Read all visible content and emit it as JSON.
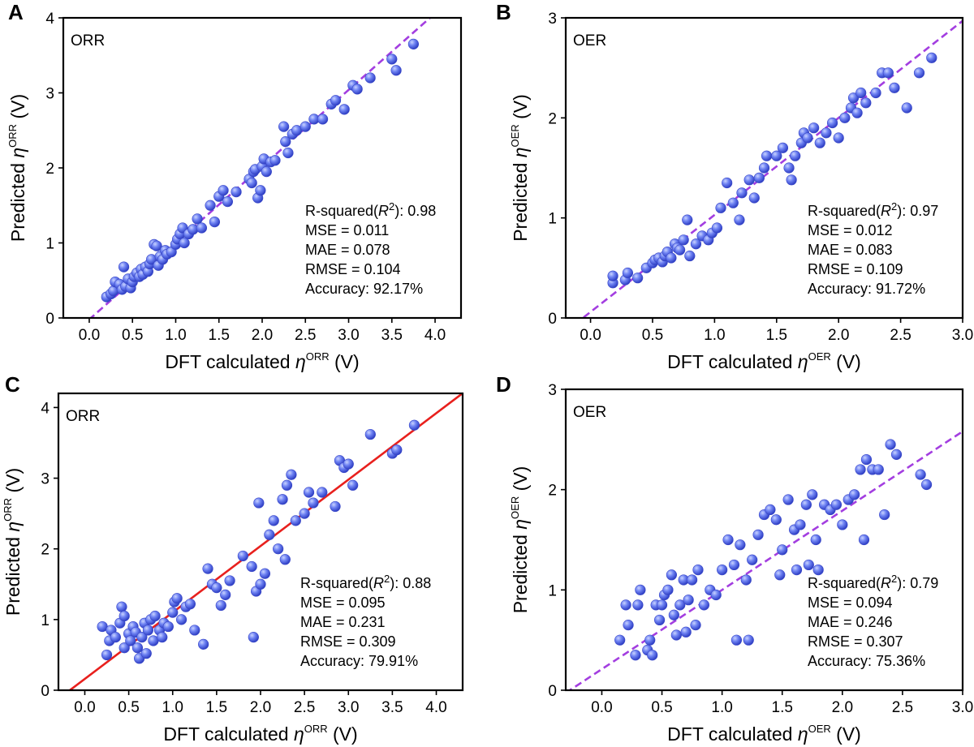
{
  "chart_data": [
    {
      "panel": "A",
      "type": "scatter",
      "label": "ORR",
      "xlabel_main": "DFT calculated ",
      "ylabel_main": "Predicted ",
      "symbol": "η",
      "superscript": "ORR",
      "unit": " (V)",
      "xlim": [
        -0.3,
        4.3
      ],
      "ylim": [
        0,
        4
      ],
      "xticks": [
        0.0,
        0.5,
        1.0,
        1.5,
        2.0,
        2.5,
        3.0,
        3.5,
        4.0
      ],
      "xtick_labels": [
        "0.0",
        "0.5",
        "1.0",
        "1.5",
        "2.0",
        "2.5",
        "3.0",
        "3.5",
        "4.0"
      ],
      "yticks": [
        0,
        1,
        2,
        3,
        4
      ],
      "ytick_labels": [
        "0",
        "1",
        "2",
        "3",
        "4"
      ],
      "fit_line": {
        "style": "dashed",
        "color": "#a33ee0",
        "slope": 1.02,
        "intercept": -0.02
      },
      "stats": {
        "r2_prefix": "R-squared(",
        "r2_sym": "R",
        "r2_sup": "2",
        "r2_suffix": "): 0.98",
        "mse": "MSE = 0.011",
        "mae": "MAE = 0.078",
        "rmse": "RMSE = 0.104",
        "acc": "Accuracy: 92.17%"
      },
      "points": [
        [
          0.2,
          0.28
        ],
        [
          0.25,
          0.32
        ],
        [
          0.28,
          0.36
        ],
        [
          0.3,
          0.48
        ],
        [
          0.35,
          0.45
        ],
        [
          0.38,
          0.38
        ],
        [
          0.42,
          0.42
        ],
        [
          0.45,
          0.52
        ],
        [
          0.48,
          0.4
        ],
        [
          0.4,
          0.68
        ],
        [
          0.5,
          0.48
        ],
        [
          0.52,
          0.55
        ],
        [
          0.55,
          0.6
        ],
        [
          0.58,
          0.55
        ],
        [
          0.6,
          0.65
        ],
        [
          0.62,
          0.58
        ],
        [
          0.65,
          0.68
        ],
        [
          0.68,
          0.62
        ],
        [
          0.7,
          0.72
        ],
        [
          0.72,
          0.78
        ],
        [
          0.75,
          0.98
        ],
        [
          0.78,
          0.96
        ],
        [
          0.8,
          0.7
        ],
        [
          0.82,
          0.82
        ],
        [
          0.85,
          0.78
        ],
        [
          0.88,
          0.9
        ],
        [
          0.9,
          0.85
        ],
        [
          0.95,
          0.88
        ],
        [
          1.0,
          0.98
        ],
        [
          1.02,
          1.05
        ],
        [
          1.05,
          1.12
        ],
        [
          1.08,
          1.2
        ],
        [
          1.1,
          1.0
        ],
        [
          1.15,
          1.12
        ],
        [
          1.2,
          1.18
        ],
        [
          1.25,
          1.32
        ],
        [
          1.3,
          1.2
        ],
        [
          1.4,
          1.5
        ],
        [
          1.45,
          1.28
        ],
        [
          1.5,
          1.62
        ],
        [
          1.55,
          1.7
        ],
        [
          1.6,
          1.55
        ],
        [
          1.7,
          1.68
        ],
        [
          1.85,
          1.85
        ],
        [
          1.88,
          1.8
        ],
        [
          1.9,
          1.95
        ],
        [
          1.92,
          1.98
        ],
        [
          1.95,
          1.6
        ],
        [
          1.98,
          1.7
        ],
        [
          2.0,
          2.02
        ],
        [
          2.02,
          2.12
        ],
        [
          2.05,
          1.95
        ],
        [
          2.1,
          2.08
        ],
        [
          2.15,
          2.1
        ],
        [
          2.25,
          2.55
        ],
        [
          2.27,
          2.35
        ],
        [
          2.3,
          2.2
        ],
        [
          2.35,
          2.45
        ],
        [
          2.4,
          2.5
        ],
        [
          2.5,
          2.55
        ],
        [
          2.6,
          2.65
        ],
        [
          2.7,
          2.65
        ],
        [
          2.8,
          2.85
        ],
        [
          2.85,
          2.9
        ],
        [
          2.95,
          2.78
        ],
        [
          3.05,
          3.1
        ],
        [
          3.1,
          3.05
        ],
        [
          3.25,
          3.2
        ],
        [
          3.5,
          3.45
        ],
        [
          3.55,
          3.3
        ],
        [
          3.75,
          3.65
        ]
      ]
    },
    {
      "panel": "B",
      "type": "scatter",
      "label": "OER",
      "xlabel_main": "DFT calculated ",
      "ylabel_main": "Predicted ",
      "symbol": "η",
      "superscript": "OER",
      "unit": " (V)",
      "xlim": [
        -0.2,
        3.0
      ],
      "ylim": [
        0,
        3
      ],
      "xticks": [
        0.0,
        0.5,
        1.0,
        1.5,
        2.0,
        2.5,
        3.0
      ],
      "xtick_labels": [
        "0.0",
        "0.5",
        "1.0",
        "1.5",
        "2.0",
        "2.5",
        "3.0"
      ],
      "yticks": [
        0,
        1,
        2,
        3
      ],
      "ytick_labels": [
        "0",
        "1",
        "2",
        "3"
      ],
      "fit_line": {
        "style": "dashed",
        "color": "#a33ee0",
        "slope": 0.97,
        "intercept": 0.06
      },
      "stats": {
        "r2_prefix": "R-squared(",
        "r2_sym": "R",
        "r2_sup": "2",
        "r2_suffix": "): 0.97",
        "mse": "MSE = 0.012",
        "mae": "MAE = 0.083",
        "rmse": "RMSE = 0.109",
        "acc": "Accuracy: 91.72%"
      },
      "points": [
        [
          0.18,
          0.35
        ],
        [
          0.18,
          0.42
        ],
        [
          0.28,
          0.38
        ],
        [
          0.3,
          0.45
        ],
        [
          0.38,
          0.4
        ],
        [
          0.45,
          0.5
        ],
        [
          0.5,
          0.55
        ],
        [
          0.52,
          0.58
        ],
        [
          0.55,
          0.6
        ],
        [
          0.58,
          0.56
        ],
        [
          0.6,
          0.62
        ],
        [
          0.62,
          0.66
        ],
        [
          0.65,
          0.6
        ],
        [
          0.68,
          0.74
        ],
        [
          0.7,
          0.7
        ],
        [
          0.72,
          0.68
        ],
        [
          0.75,
          0.78
        ],
        [
          0.78,
          0.98
        ],
        [
          0.8,
          0.62
        ],
        [
          0.85,
          0.74
        ],
        [
          0.9,
          0.82
        ],
        [
          0.95,
          0.78
        ],
        [
          0.98,
          0.85
        ],
        [
          1.02,
          0.9
        ],
        [
          1.05,
          1.1
        ],
        [
          1.1,
          1.35
        ],
        [
          1.15,
          1.15
        ],
        [
          1.2,
          0.98
        ],
        [
          1.22,
          1.25
        ],
        [
          1.28,
          1.38
        ],
        [
          1.32,
          1.2
        ],
        [
          1.36,
          1.4
        ],
        [
          1.4,
          1.5
        ],
        [
          1.42,
          1.62
        ],
        [
          1.5,
          1.62
        ],
        [
          1.55,
          1.7
        ],
        [
          1.6,
          1.5
        ],
        [
          1.62,
          1.38
        ],
        [
          1.65,
          1.62
        ],
        [
          1.7,
          1.75
        ],
        [
          1.72,
          1.85
        ],
        [
          1.75,
          1.8
        ],
        [
          1.8,
          1.9
        ],
        [
          1.85,
          1.75
        ],
        [
          1.9,
          1.85
        ],
        [
          1.95,
          1.95
        ],
        [
          2.0,
          1.8
        ],
        [
          2.05,
          2.0
        ],
        [
          2.1,
          2.1
        ],
        [
          2.12,
          2.2
        ],
        [
          2.15,
          2.05
        ],
        [
          2.18,
          2.25
        ],
        [
          2.22,
          2.15
        ],
        [
          2.3,
          2.25
        ],
        [
          2.35,
          2.45
        ],
        [
          2.4,
          2.45
        ],
        [
          2.45,
          2.3
        ],
        [
          2.55,
          2.1
        ],
        [
          2.65,
          2.45
        ],
        [
          2.75,
          2.6
        ]
      ]
    },
    {
      "panel": "C",
      "type": "scatter",
      "label": "ORR",
      "xlabel_main": "DFT calculated ",
      "ylabel_main": "Predicted ",
      "symbol": "η",
      "superscript": "ORR",
      "unit": " (V)",
      "xlim": [
        -0.3,
        4.3
      ],
      "ylim": [
        0,
        4.2
      ],
      "xticks": [
        0.0,
        0.5,
        1.0,
        1.5,
        2.0,
        2.5,
        3.0,
        3.5,
        4.0
      ],
      "xtick_labels": [
        "0.0",
        "0.5",
        "1.0",
        "1.5",
        "2.0",
        "2.5",
        "3.0",
        "3.5",
        "4.0"
      ],
      "yticks": [
        0,
        1,
        2,
        3,
        4
      ],
      "ytick_labels": [
        "0",
        "1",
        "2",
        "3",
        "4"
      ],
      "fit_line": {
        "style": "solid",
        "color": "#e8201d",
        "slope": 0.94,
        "intercept": 0.16
      },
      "stats": {
        "r2_prefix": "R-squared(",
        "r2_sym": "R",
        "r2_sup": "2",
        "r2_suffix": "): 0.88",
        "mse": "MSE = 0.095",
        "mae": "MAE = 0.231",
        "rmse": "RMSE = 0.309",
        "acc": "Accuracy: 79.91%"
      },
      "points": [
        [
          0.2,
          0.9
        ],
        [
          0.25,
          0.5
        ],
        [
          0.28,
          0.7
        ],
        [
          0.3,
          0.85
        ],
        [
          0.35,
          0.75
        ],
        [
          0.4,
          0.95
        ],
        [
          0.42,
          1.18
        ],
        [
          0.45,
          1.05
        ],
        [
          0.45,
          0.6
        ],
        [
          0.5,
          0.8
        ],
        [
          0.52,
          0.7
        ],
        [
          0.55,
          0.9
        ],
        [
          0.58,
          0.82
        ],
        [
          0.6,
          0.6
        ],
        [
          0.62,
          0.45
        ],
        [
          0.65,
          0.75
        ],
        [
          0.68,
          0.95
        ],
        [
          0.7,
          0.52
        ],
        [
          0.72,
          0.85
        ],
        [
          0.75,
          1.0
        ],
        [
          0.78,
          0.7
        ],
        [
          0.8,
          1.05
        ],
        [
          0.85,
          0.85
        ],
        [
          0.88,
          0.75
        ],
        [
          0.9,
          0.95
        ],
        [
          0.95,
          0.9
        ],
        [
          1.0,
          1.1
        ],
        [
          1.02,
          1.25
        ],
        [
          1.05,
          1.3
        ],
        [
          1.1,
          1.0
        ],
        [
          1.15,
          1.18
        ],
        [
          1.2,
          1.22
        ],
        [
          1.25,
          0.85
        ],
        [
          1.35,
          0.65
        ],
        [
          1.4,
          1.72
        ],
        [
          1.45,
          1.5
        ],
        [
          1.5,
          1.45
        ],
        [
          1.55,
          1.2
        ],
        [
          1.6,
          1.35
        ],
        [
          1.65,
          1.55
        ],
        [
          1.8,
          1.9
        ],
        [
          1.9,
          1.75
        ],
        [
          1.92,
          0.75
        ],
        [
          1.95,
          1.4
        ],
        [
          1.98,
          2.65
        ],
        [
          2.0,
          1.5
        ],
        [
          2.05,
          1.65
        ],
        [
          2.1,
          2.2
        ],
        [
          2.15,
          2.4
        ],
        [
          2.2,
          2.0
        ],
        [
          2.25,
          2.7
        ],
        [
          2.28,
          1.85
        ],
        [
          2.3,
          2.9
        ],
        [
          2.35,
          3.05
        ],
        [
          2.4,
          2.4
        ],
        [
          2.5,
          2.5
        ],
        [
          2.55,
          2.8
        ],
        [
          2.6,
          2.65
        ],
        [
          2.7,
          2.8
        ],
        [
          2.85,
          2.6
        ],
        [
          2.9,
          3.25
        ],
        [
          2.95,
          3.15
        ],
        [
          3.0,
          3.2
        ],
        [
          3.05,
          2.9
        ],
        [
          3.25,
          3.62
        ],
        [
          3.5,
          3.35
        ],
        [
          3.55,
          3.4
        ],
        [
          3.75,
          3.75
        ]
      ]
    },
    {
      "panel": "D",
      "type": "scatter",
      "label": "OER",
      "xlabel_main": "DFT calculated ",
      "ylabel_main": "Predicted ",
      "symbol": "η",
      "superscript": "OER",
      "unit": " (V)",
      "xlim": [
        -0.3,
        3.0
      ],
      "ylim": [
        0,
        3
      ],
      "xticks": [
        0.0,
        0.5,
        1.0,
        1.5,
        2.0,
        2.5,
        3.0
      ],
      "xtick_labels": [
        "0.0",
        "0.5",
        "1.0",
        "1.5",
        "2.0",
        "2.5",
        "3.0"
      ],
      "yticks": [
        0,
        1,
        2,
        3
      ],
      "ytick_labels": [
        "0",
        "1",
        "2",
        "3"
      ],
      "fit_line": {
        "style": "dashed",
        "color": "#a33ee0",
        "slope": 0.79,
        "intercept": 0.21
      },
      "stats": {
        "r2_prefix": "R-squared(",
        "r2_sym": "R",
        "r2_sup": "2",
        "r2_suffix": "): 0.79",
        "mse": "MSE = 0.094",
        "mae": "MAE = 0.246",
        "rmse": "RMSE = 0.307",
        "acc": "Accuracy: 75.36%"
      },
      "points": [
        [
          0.15,
          0.5
        ],
        [
          0.2,
          0.85
        ],
        [
          0.22,
          0.65
        ],
        [
          0.28,
          0.35
        ],
        [
          0.3,
          0.85
        ],
        [
          0.32,
          1.0
        ],
        [
          0.38,
          0.4
        ],
        [
          0.4,
          0.5
        ],
        [
          0.42,
          0.35
        ],
        [
          0.45,
          0.85
        ],
        [
          0.48,
          0.7
        ],
        [
          0.5,
          0.85
        ],
        [
          0.52,
          0.95
        ],
        [
          0.55,
          1.0
        ],
        [
          0.58,
          1.15
        ],
        [
          0.6,
          0.75
        ],
        [
          0.62,
          0.55
        ],
        [
          0.65,
          0.85
        ],
        [
          0.68,
          1.1
        ],
        [
          0.7,
          0.58
        ],
        [
          0.72,
          0.9
        ],
        [
          0.75,
          1.1
        ],
        [
          0.78,
          0.65
        ],
        [
          0.8,
          1.2
        ],
        [
          0.85,
          0.85
        ],
        [
          0.9,
          1.0
        ],
        [
          0.95,
          0.95
        ],
        [
          1.0,
          1.2
        ],
        [
          1.05,
          1.5
        ],
        [
          1.1,
          1.25
        ],
        [
          1.12,
          0.5
        ],
        [
          1.15,
          1.45
        ],
        [
          1.2,
          1.1
        ],
        [
          1.22,
          0.5
        ],
        [
          1.25,
          1.3
        ],
        [
          1.3,
          1.55
        ],
        [
          1.35,
          1.75
        ],
        [
          1.4,
          1.8
        ],
        [
          1.45,
          1.7
        ],
        [
          1.48,
          1.15
        ],
        [
          1.5,
          1.4
        ],
        [
          1.55,
          1.9
        ],
        [
          1.6,
          1.6
        ],
        [
          1.62,
          1.2
        ],
        [
          1.65,
          1.65
        ],
        [
          1.7,
          1.85
        ],
        [
          1.72,
          1.25
        ],
        [
          1.75,
          1.95
        ],
        [
          1.78,
          1.5
        ],
        [
          1.8,
          1.2
        ],
        [
          1.85,
          1.85
        ],
        [
          1.9,
          1.8
        ],
        [
          1.95,
          1.85
        ],
        [
          2.0,
          1.65
        ],
        [
          2.05,
          1.9
        ],
        [
          2.1,
          1.95
        ],
        [
          2.15,
          2.2
        ],
        [
          2.18,
          1.5
        ],
        [
          2.2,
          2.3
        ],
        [
          2.25,
          2.2
        ],
        [
          2.3,
          2.2
        ],
        [
          2.35,
          1.75
        ],
        [
          2.4,
          2.45
        ],
        [
          2.45,
          2.35
        ],
        [
          2.65,
          2.15
        ],
        [
          2.7,
          2.05
        ]
      ]
    }
  ]
}
